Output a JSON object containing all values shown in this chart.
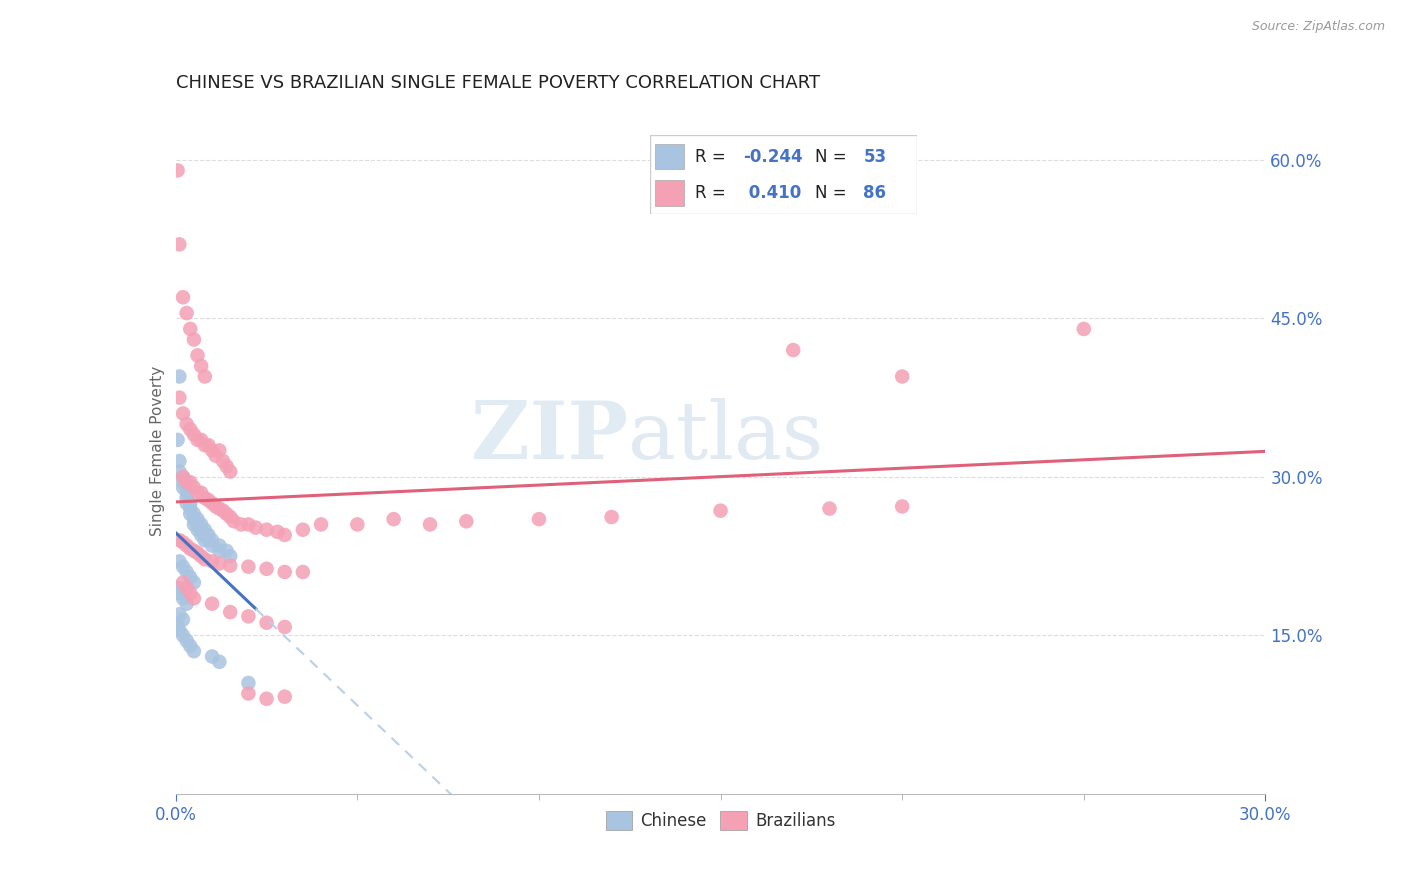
{
  "title": "CHINESE VS BRAZILIAN SINGLE FEMALE POVERTY CORRELATION CHART",
  "source": "Source: ZipAtlas.com",
  "ylabel": "Single Female Poverty",
  "ytick_labels": [
    "15.0%",
    "30.0%",
    "45.0%",
    "60.0%"
  ],
  "ytick_values": [
    0.15,
    0.3,
    0.45,
    0.6
  ],
  "xlim": [
    0.0,
    0.3
  ],
  "ylim": [
    0.0,
    0.65
  ],
  "watermark_zip": "ZIP",
  "watermark_atlas": "atlas",
  "legend_chinese_r": "-0.244",
  "legend_chinese_n": "53",
  "legend_brazilian_r": "0.410",
  "legend_brazilian_n": "86",
  "chinese_color": "#a8c4e0",
  "brazilian_color": "#f4a0b5",
  "trendline_chinese_color": "#4472c4",
  "trendline_brazilian_color": "#e0607a",
  "trendline_extension_color": "#b8d0e8",
  "chinese_points": [
    [
      0.001,
      0.395
    ],
    [
      0.0005,
      0.335
    ],
    [
      0.001,
      0.315
    ],
    [
      0.001,
      0.305
    ],
    [
      0.002,
      0.3
    ],
    [
      0.002,
      0.295
    ],
    [
      0.002,
      0.29
    ],
    [
      0.003,
      0.285
    ],
    [
      0.003,
      0.28
    ],
    [
      0.003,
      0.275
    ],
    [
      0.004,
      0.275
    ],
    [
      0.004,
      0.27
    ],
    [
      0.004,
      0.265
    ],
    [
      0.005,
      0.265
    ],
    [
      0.005,
      0.26
    ],
    [
      0.005,
      0.255
    ],
    [
      0.006,
      0.26
    ],
    [
      0.006,
      0.255
    ],
    [
      0.006,
      0.25
    ],
    [
      0.007,
      0.255
    ],
    [
      0.007,
      0.25
    ],
    [
      0.007,
      0.245
    ],
    [
      0.008,
      0.25
    ],
    [
      0.008,
      0.245
    ],
    [
      0.008,
      0.24
    ],
    [
      0.009,
      0.245
    ],
    [
      0.009,
      0.24
    ],
    [
      0.01,
      0.24
    ],
    [
      0.01,
      0.235
    ],
    [
      0.012,
      0.235
    ],
    [
      0.012,
      0.23
    ],
    [
      0.014,
      0.23
    ],
    [
      0.015,
      0.225
    ],
    [
      0.001,
      0.22
    ],
    [
      0.002,
      0.215
    ],
    [
      0.003,
      0.21
    ],
    [
      0.004,
      0.205
    ],
    [
      0.005,
      0.2
    ],
    [
      0.0005,
      0.195
    ],
    [
      0.001,
      0.19
    ],
    [
      0.002,
      0.185
    ],
    [
      0.003,
      0.18
    ],
    [
      0.001,
      0.17
    ],
    [
      0.002,
      0.165
    ],
    [
      0.0005,
      0.16
    ],
    [
      0.001,
      0.155
    ],
    [
      0.002,
      0.15
    ],
    [
      0.003,
      0.145
    ],
    [
      0.004,
      0.14
    ],
    [
      0.005,
      0.135
    ],
    [
      0.01,
      0.13
    ],
    [
      0.012,
      0.125
    ],
    [
      0.02,
      0.105
    ]
  ],
  "brazilian_points": [
    [
      0.0005,
      0.59
    ],
    [
      0.001,
      0.52
    ],
    [
      0.002,
      0.47
    ],
    [
      0.003,
      0.455
    ],
    [
      0.004,
      0.44
    ],
    [
      0.005,
      0.43
    ],
    [
      0.006,
      0.415
    ],
    [
      0.007,
      0.405
    ],
    [
      0.008,
      0.395
    ],
    [
      0.001,
      0.375
    ],
    [
      0.002,
      0.36
    ],
    [
      0.003,
      0.35
    ],
    [
      0.004,
      0.345
    ],
    [
      0.005,
      0.34
    ],
    [
      0.006,
      0.335
    ],
    [
      0.007,
      0.335
    ],
    [
      0.008,
      0.33
    ],
    [
      0.009,
      0.33
    ],
    [
      0.01,
      0.325
    ],
    [
      0.011,
      0.32
    ],
    [
      0.012,
      0.325
    ],
    [
      0.013,
      0.315
    ],
    [
      0.014,
      0.31
    ],
    [
      0.015,
      0.305
    ],
    [
      0.002,
      0.3
    ],
    [
      0.003,
      0.295
    ],
    [
      0.004,
      0.295
    ],
    [
      0.005,
      0.29
    ],
    [
      0.006,
      0.285
    ],
    [
      0.007,
      0.285
    ],
    [
      0.008,
      0.28
    ],
    [
      0.009,
      0.278
    ],
    [
      0.01,
      0.275
    ],
    [
      0.011,
      0.272
    ],
    [
      0.012,
      0.27
    ],
    [
      0.013,
      0.268
    ],
    [
      0.014,
      0.265
    ],
    [
      0.015,
      0.262
    ],
    [
      0.016,
      0.258
    ],
    [
      0.018,
      0.255
    ],
    [
      0.02,
      0.255
    ],
    [
      0.022,
      0.252
    ],
    [
      0.025,
      0.25
    ],
    [
      0.028,
      0.248
    ],
    [
      0.03,
      0.245
    ],
    [
      0.035,
      0.25
    ],
    [
      0.04,
      0.255
    ],
    [
      0.05,
      0.255
    ],
    [
      0.06,
      0.26
    ],
    [
      0.07,
      0.255
    ],
    [
      0.08,
      0.258
    ],
    [
      0.1,
      0.26
    ],
    [
      0.12,
      0.262
    ],
    [
      0.15,
      0.268
    ],
    [
      0.18,
      0.27
    ],
    [
      0.2,
      0.272
    ],
    [
      0.001,
      0.24
    ],
    [
      0.002,
      0.238
    ],
    [
      0.003,
      0.235
    ],
    [
      0.004,
      0.232
    ],
    [
      0.005,
      0.23
    ],
    [
      0.006,
      0.228
    ],
    [
      0.007,
      0.225
    ],
    [
      0.008,
      0.222
    ],
    [
      0.01,
      0.22
    ],
    [
      0.012,
      0.218
    ],
    [
      0.015,
      0.216
    ],
    [
      0.02,
      0.215
    ],
    [
      0.025,
      0.213
    ],
    [
      0.03,
      0.21
    ],
    [
      0.035,
      0.21
    ],
    [
      0.002,
      0.2
    ],
    [
      0.003,
      0.195
    ],
    [
      0.004,
      0.19
    ],
    [
      0.005,
      0.185
    ],
    [
      0.01,
      0.18
    ],
    [
      0.015,
      0.172
    ],
    [
      0.02,
      0.168
    ],
    [
      0.025,
      0.162
    ],
    [
      0.03,
      0.158
    ],
    [
      0.17,
      0.42
    ],
    [
      0.2,
      0.395
    ],
    [
      0.25,
      0.44
    ],
    [
      0.02,
      0.095
    ],
    [
      0.025,
      0.09
    ],
    [
      0.03,
      0.092
    ]
  ]
}
